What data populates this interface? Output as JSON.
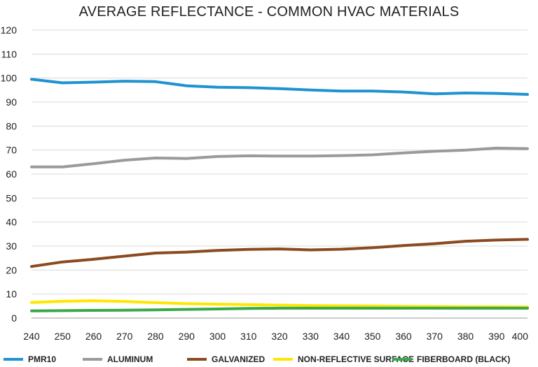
{
  "chart_data": {
    "type": "line",
    "title": "AVERAGE REFLECTANCE - COMMON HVAC MATERIALS",
    "xlabel": "",
    "ylabel": "",
    "xlim": [
      240,
      400
    ],
    "ylim": [
      0,
      120
    ],
    "xticks": [
      240,
      250,
      260,
      270,
      280,
      290,
      300,
      310,
      320,
      330,
      340,
      350,
      360,
      370,
      380,
      390,
      400
    ],
    "yticks": [
      0,
      10,
      20,
      30,
      40,
      50,
      60,
      70,
      80,
      90,
      100,
      110,
      120
    ],
    "grid": "horizontal",
    "legend_position": "bottom",
    "x": [
      240,
      250,
      260,
      270,
      280,
      290,
      300,
      310,
      320,
      330,
      340,
      350,
      360,
      370,
      380,
      390,
      400
    ],
    "series": [
      {
        "name": "PMR10",
        "color": "#1f93d0",
        "values": [
          99.5,
          98.0,
          98.3,
          98.7,
          98.5,
          96.8,
          96.2,
          96.0,
          95.6,
          95.0,
          94.6,
          94.6,
          94.2,
          93.4,
          93.8,
          93.6,
          93.2
        ]
      },
      {
        "name": "ALUMINUM",
        "color": "#9a9a9a",
        "values": [
          63.0,
          63.0,
          64.3,
          65.8,
          66.7,
          66.5,
          67.3,
          67.6,
          67.5,
          67.5,
          67.7,
          68.0,
          68.8,
          69.5,
          70.0,
          70.8,
          70.6
        ]
      },
      {
        "name": "GALVANIZED",
        "color": "#8b4a1f",
        "values": [
          21.5,
          23.4,
          24.5,
          25.8,
          27.1,
          27.5,
          28.2,
          28.6,
          28.8,
          28.4,
          28.7,
          29.3,
          30.2,
          31.0,
          32.0,
          32.5,
          32.8
        ]
      },
      {
        "name": "NON-REFLECTIVE SURFACE",
        "color": "#ffe600",
        "values": [
          6.5,
          7.0,
          7.2,
          6.9,
          6.4,
          6.0,
          5.8,
          5.6,
          5.4,
          5.2,
          5.1,
          5.0,
          4.9,
          4.8,
          4.7,
          4.7,
          4.6
        ]
      },
      {
        "name": "FIBERBOARD (BLACK)",
        "color": "#3aa84a",
        "values": [
          3.0,
          3.1,
          3.2,
          3.3,
          3.4,
          3.6,
          3.8,
          4.0,
          4.1,
          4.1,
          4.1,
          4.1,
          4.1,
          4.1,
          4.1,
          4.1,
          4.1
        ]
      }
    ]
  }
}
